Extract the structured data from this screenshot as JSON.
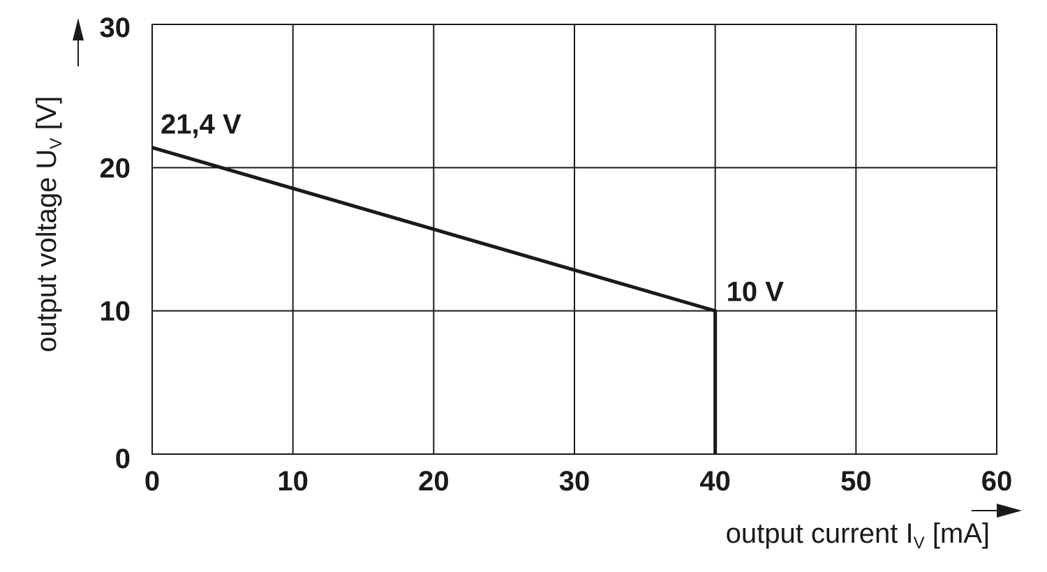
{
  "chart_data": {
    "type": "line",
    "xlabel": {
      "text": "output current I",
      "subscript": "V",
      "unit": " [mA]"
    },
    "ylabel": {
      "text": "output voltage U",
      "subscript": "V",
      "unit": " [V]"
    },
    "xlim": [
      0,
      60
    ],
    "ylim": [
      0,
      30
    ],
    "x_ticks": [
      "0",
      "10",
      "20",
      "30",
      "40",
      "50",
      "60"
    ],
    "y_ticks": [
      "0",
      "10",
      "20",
      "30"
    ],
    "grid": true,
    "series": [
      {
        "x": [
          0,
          40,
          40
        ],
        "y": [
          21.4,
          10,
          0
        ]
      }
    ],
    "annotations": [
      {
        "text": "21,4 V",
        "x": 0,
        "y": 21.4
      },
      {
        "text": "10 V",
        "x": 40,
        "y": 10
      }
    ]
  }
}
